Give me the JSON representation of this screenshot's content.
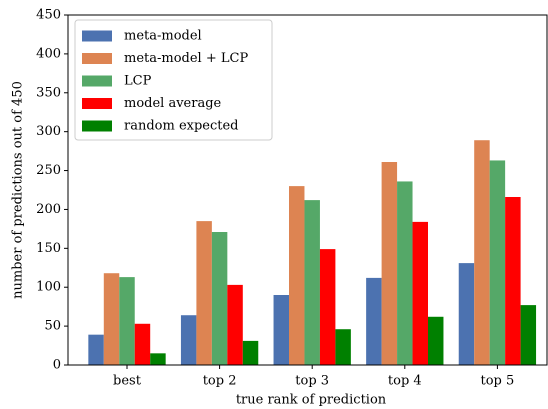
{
  "chart_data": {
    "type": "bar",
    "xlabel": "true rank of prediction",
    "ylabel": "number of predictions out of 450",
    "categories": [
      "best",
      "top 2",
      "top 3",
      "top 4",
      "top 5"
    ],
    "series": [
      {
        "name": "meta-model",
        "color": "#4c72b0",
        "values": [
          39,
          64,
          90,
          112,
          131
        ]
      },
      {
        "name": "meta-model + LCP",
        "color": "#dd8452",
        "values": [
          118,
          185,
          230,
          261,
          289
        ]
      },
      {
        "name": "LCP",
        "color": "#55a868",
        "values": [
          113,
          171,
          212,
          236,
          263
        ]
      },
      {
        "name": "model average",
        "color": "#ff0000",
        "values": [
          53,
          103,
          149,
          184,
          216
        ]
      },
      {
        "name": "random expected",
        "color": "#008000",
        "values": [
          15,
          31,
          46,
          62,
          77
        ]
      }
    ],
    "ylim": [
      0,
      450
    ],
    "yticks": [
      0,
      50,
      100,
      150,
      200,
      250,
      300,
      350,
      400,
      450
    ],
    "legend": "upper left"
  }
}
